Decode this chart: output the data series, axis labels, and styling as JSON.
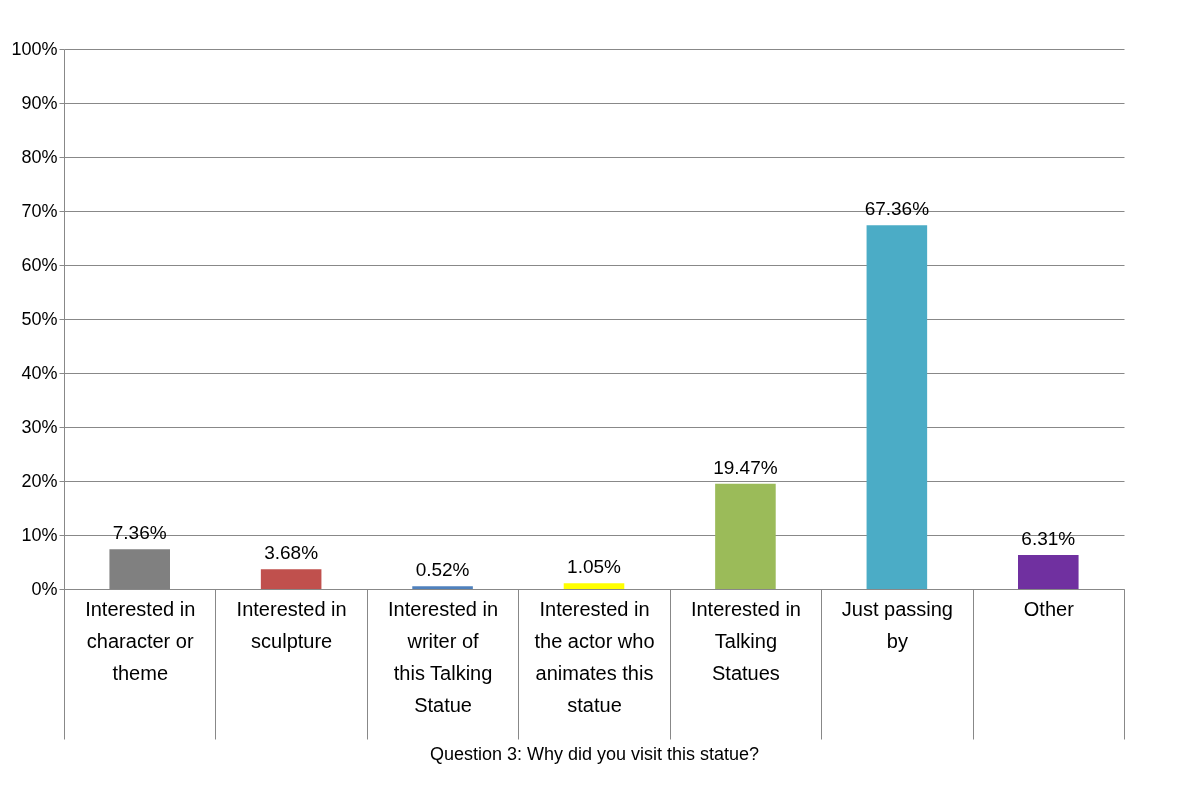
{
  "chart_data": {
    "type": "bar",
    "xlabel": "Question 3: Why did you visit this statue?",
    "categories": [
      "Interested in character or theme",
      "Interested in sculpture",
      "Interested in writer of this Talking Statue",
      "Interested in the actor who animates this statue",
      "Interested in Talking Statues",
      "Just passing by",
      "Other"
    ],
    "values": [
      7.36,
      3.68,
      0.52,
      1.05,
      19.47,
      67.36,
      6.31
    ],
    "value_labels": [
      "7.36%",
      "3.68%",
      "0.52%",
      "1.05%",
      "19.47%",
      "67.36%",
      "6.31%"
    ],
    "colors": [
      "#808080",
      "#c0504d",
      "#4f81bd",
      "#ffff00",
      "#9bbb59",
      "#4bacc6",
      "#7030a0"
    ],
    "ylim": [
      0,
      100
    ],
    "yticks": [
      {
        "value": 0,
        "label": "0%"
      },
      {
        "value": 10,
        "label": "10%"
      },
      {
        "value": 20,
        "label": "20%"
      },
      {
        "value": 30,
        "label": "30%"
      },
      {
        "value": 40,
        "label": "40%"
      },
      {
        "value": 50,
        "label": "50%"
      },
      {
        "value": 60,
        "label": "60%"
      },
      {
        "value": 70,
        "label": "70%"
      },
      {
        "value": 80,
        "label": "80%"
      },
      {
        "value": 90,
        "label": "90%"
      },
      {
        "value": 100,
        "label": "100%"
      }
    ],
    "grid": "y"
  }
}
